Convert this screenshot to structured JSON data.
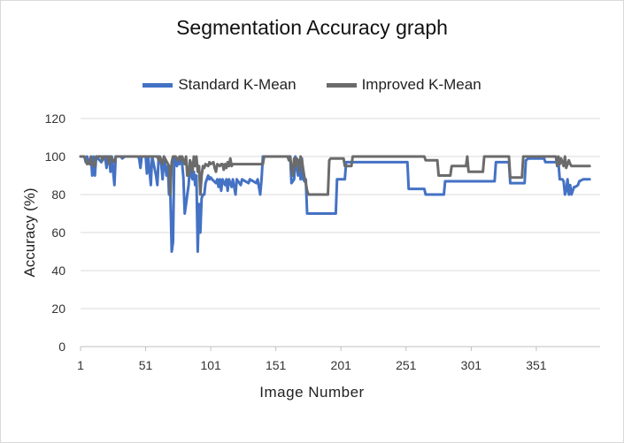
{
  "chart_data": {
    "type": "line",
    "title": "Segmentation Accuracy graph",
    "xlabel": "Image Number",
    "ylabel": "Accuracy (%)",
    "xlim": [
      1,
      400
    ],
    "ylim": [
      0,
      120
    ],
    "x_ticks": [
      1,
      51,
      101,
      151,
      201,
      251,
      301,
      351
    ],
    "y_ticks": [
      0,
      20,
      40,
      60,
      80,
      100,
      120
    ],
    "grid": "horizontal",
    "legend": "top",
    "series": [
      {
        "name": "Standard K-Mean",
        "color": "#4472c4",
        "points": [
          [
            1,
            100
          ],
          [
            4,
            100
          ],
          [
            5,
            97
          ],
          [
            6,
            100
          ],
          [
            8,
            96
          ],
          [
            9,
            100
          ],
          [
            10,
            90
          ],
          [
            11,
            100
          ],
          [
            12,
            90
          ],
          [
            13,
            100
          ],
          [
            17,
            97
          ],
          [
            18,
            100
          ],
          [
            20,
            99
          ],
          [
            21,
            94
          ],
          [
            22,
            100
          ],
          [
            23,
            100
          ],
          [
            24,
            92
          ],
          [
            25,
            100
          ],
          [
            27,
            85
          ],
          [
            28,
            100
          ],
          [
            32,
            100
          ],
          [
            33,
            99
          ],
          [
            35,
            100
          ],
          [
            45,
            100
          ],
          [
            46,
            99
          ],
          [
            47,
            94
          ],
          [
            48,
            100
          ],
          [
            51,
            100
          ],
          [
            52,
            91
          ],
          [
            53,
            100
          ],
          [
            55,
            85
          ],
          [
            56,
            100
          ],
          [
            59,
            90
          ],
          [
            60,
            85
          ],
          [
            61,
            100
          ],
          [
            63,
            96
          ],
          [
            64,
            88
          ],
          [
            65,
            100
          ],
          [
            67,
            90
          ],
          [
            68,
            95
          ],
          [
            69,
            80
          ],
          [
            70,
            80
          ],
          [
            71,
            50
          ],
          [
            72,
            55
          ],
          [
            73,
            100
          ],
          [
            75,
            95
          ],
          [
            76,
            98
          ],
          [
            77,
            96
          ],
          [
            78,
            100
          ],
          [
            79,
            96
          ],
          [
            80,
            89
          ],
          [
            81,
            70
          ],
          [
            82,
            75
          ],
          [
            83,
            80
          ],
          [
            84,
            85
          ],
          [
            85,
            95
          ],
          [
            86,
            90
          ],
          [
            87,
            88
          ],
          [
            88,
            92
          ],
          [
            89,
            85
          ],
          [
            90,
            90
          ],
          [
            91,
            50
          ],
          [
            92,
            75
          ],
          [
            93,
            60
          ],
          [
            94,
            78
          ],
          [
            95,
            80
          ],
          [
            96,
            80
          ],
          [
            97,
            86
          ],
          [
            98,
            88
          ],
          [
            99,
            90
          ],
          [
            100,
            88
          ],
          [
            101,
            89
          ],
          [
            102,
            88
          ],
          [
            105,
            86
          ],
          [
            106,
            88
          ],
          [
            107,
            84
          ],
          [
            108,
            88
          ],
          [
            109,
            82
          ],
          [
            110,
            88
          ],
          [
            112,
            85
          ],
          [
            113,
            88
          ],
          [
            114,
            82
          ],
          [
            115,
            88
          ],
          [
            117,
            84
          ],
          [
            118,
            88
          ],
          [
            120,
            80
          ],
          [
            121,
            88
          ],
          [
            124,
            85
          ],
          [
            125,
            88
          ],
          [
            130,
            86
          ],
          [
            131,
            88
          ],
          [
            136,
            86
          ],
          [
            137,
            88
          ],
          [
            139,
            80
          ],
          [
            140,
            88
          ],
          [
            141,
            100
          ],
          [
            162,
            100
          ],
          [
            163,
            86
          ],
          [
            165,
            88
          ],
          [
            166,
            100
          ],
          [
            168,
            90
          ],
          [
            169,
            98
          ],
          [
            170,
            88
          ],
          [
            171,
            99
          ],
          [
            172,
            88
          ],
          [
            173,
            87
          ],
          [
            174,
            88
          ],
          [
            175,
            70
          ],
          [
            196,
            70
          ],
          [
            197,
            70
          ],
          [
            198,
            88
          ],
          [
            204,
            88
          ],
          [
            205,
            97
          ],
          [
            252,
            97
          ],
          [
            253,
            83
          ],
          [
            265,
            83
          ],
          [
            266,
            80
          ],
          [
            280,
            80
          ],
          [
            281,
            87
          ],
          [
            319,
            87
          ],
          [
            320,
            97
          ],
          [
            330,
            97
          ],
          [
            331,
            86
          ],
          [
            342,
            86
          ],
          [
            343,
            98
          ],
          [
            345,
            99
          ],
          [
            357,
            99
          ],
          [
            358,
            97
          ],
          [
            368,
            97
          ],
          [
            369,
            88
          ],
          [
            371,
            88
          ],
          [
            372,
            87
          ],
          [
            373,
            80
          ],
          [
            374,
            82
          ],
          [
            375,
            88
          ],
          [
            376,
            80
          ],
          [
            377,
            85
          ],
          [
            378,
            80
          ],
          [
            379,
            82
          ],
          [
            380,
            84
          ],
          [
            381,
            84
          ],
          [
            383,
            85
          ],
          [
            384,
            87
          ],
          [
            387,
            88
          ],
          [
            392,
            88
          ]
        ]
      },
      {
        "name": "Improved K-Mean",
        "color": "#6b6b6b",
        "points": [
          [
            1,
            100
          ],
          [
            4,
            100
          ],
          [
            5,
            98
          ],
          [
            6,
            96
          ],
          [
            7,
            97
          ],
          [
            8,
            96
          ],
          [
            9,
            100
          ],
          [
            10,
            97
          ],
          [
            11,
            95
          ],
          [
            12,
            95
          ],
          [
            13,
            100
          ],
          [
            17,
            100
          ],
          [
            18,
            98
          ],
          [
            19,
            100
          ],
          [
            22,
            100
          ],
          [
            23,
            96
          ],
          [
            24,
            100
          ],
          [
            27,
            97
          ],
          [
            28,
            100
          ],
          [
            60,
            100
          ],
          [
            61,
            98
          ],
          [
            62,
            100
          ],
          [
            64,
            96
          ],
          [
            65,
            100
          ],
          [
            69,
            95
          ],
          [
            70,
            80
          ],
          [
            71,
            97
          ],
          [
            72,
            100
          ],
          [
            73,
            100
          ],
          [
            74,
            100
          ],
          [
            76,
            98
          ],
          [
            77,
            100
          ],
          [
            78,
            98
          ],
          [
            79,
            100
          ],
          [
            80,
            98
          ],
          [
            81,
            96
          ],
          [
            82,
            100
          ],
          [
            83,
            90
          ],
          [
            84,
            90
          ],
          [
            85,
            98
          ],
          [
            86,
            96
          ],
          [
            87,
            92
          ],
          [
            88,
            100
          ],
          [
            89,
            95
          ],
          [
            90,
            100
          ],
          [
            91,
            92
          ],
          [
            92,
            95
          ],
          [
            93,
            80
          ],
          [
            94,
            90
          ],
          [
            95,
            95
          ],
          [
            96,
            94
          ],
          [
            97,
            96
          ],
          [
            99,
            95
          ],
          [
            100,
            97
          ],
          [
            101,
            96
          ],
          [
            103,
            97
          ],
          [
            104,
            94
          ],
          [
            105,
            92
          ],
          [
            106,
            96
          ],
          [
            108,
            95
          ],
          [
            109,
            96
          ],
          [
            110,
            96
          ],
          [
            111,
            93
          ],
          [
            112,
            96
          ],
          [
            113,
            94
          ],
          [
            114,
            97
          ],
          [
            115,
            95
          ],
          [
            116,
            99
          ],
          [
            117,
            95
          ],
          [
            118,
            96
          ],
          [
            141,
            96
          ],
          [
            142,
            100
          ],
          [
            160,
            100
          ],
          [
            161,
            98
          ],
          [
            162,
            100
          ],
          [
            163,
            94
          ],
          [
            164,
            90
          ],
          [
            165,
            99
          ],
          [
            166,
            95
          ],
          [
            167,
            99
          ],
          [
            168,
            98
          ],
          [
            169,
            92
          ],
          [
            170,
            100
          ],
          [
            171,
            98
          ],
          [
            172,
            93
          ],
          [
            173,
            89
          ],
          [
            174,
            86
          ],
          [
            175,
            82
          ],
          [
            176,
            80
          ],
          [
            191,
            80
          ],
          [
            192,
            98
          ],
          [
            193,
            99
          ],
          [
            203,
            99
          ],
          [
            204,
            95
          ],
          [
            209,
            95
          ],
          [
            210,
            100
          ],
          [
            265,
            100
          ],
          [
            266,
            98
          ],
          [
            275,
            98
          ],
          [
            276,
            90
          ],
          [
            285,
            90
          ],
          [
            286,
            95
          ],
          [
            297,
            95
          ],
          [
            298,
            100
          ],
          [
            299,
            92
          ],
          [
            310,
            92
          ],
          [
            311,
            100
          ],
          [
            330,
            100
          ],
          [
            331,
            89
          ],
          [
            340,
            89
          ],
          [
            341,
            100
          ],
          [
            366,
            100
          ],
          [
            367,
            95
          ],
          [
            368,
            100
          ],
          [
            369,
            96
          ],
          [
            370,
            99
          ],
          [
            371,
            97
          ],
          [
            372,
            95
          ],
          [
            373,
            100
          ],
          [
            374,
            94
          ],
          [
            375,
            96
          ],
          [
            376,
            98
          ],
          [
            377,
            96
          ],
          [
            378,
            95
          ],
          [
            392,
            95
          ]
        ]
      }
    ]
  }
}
